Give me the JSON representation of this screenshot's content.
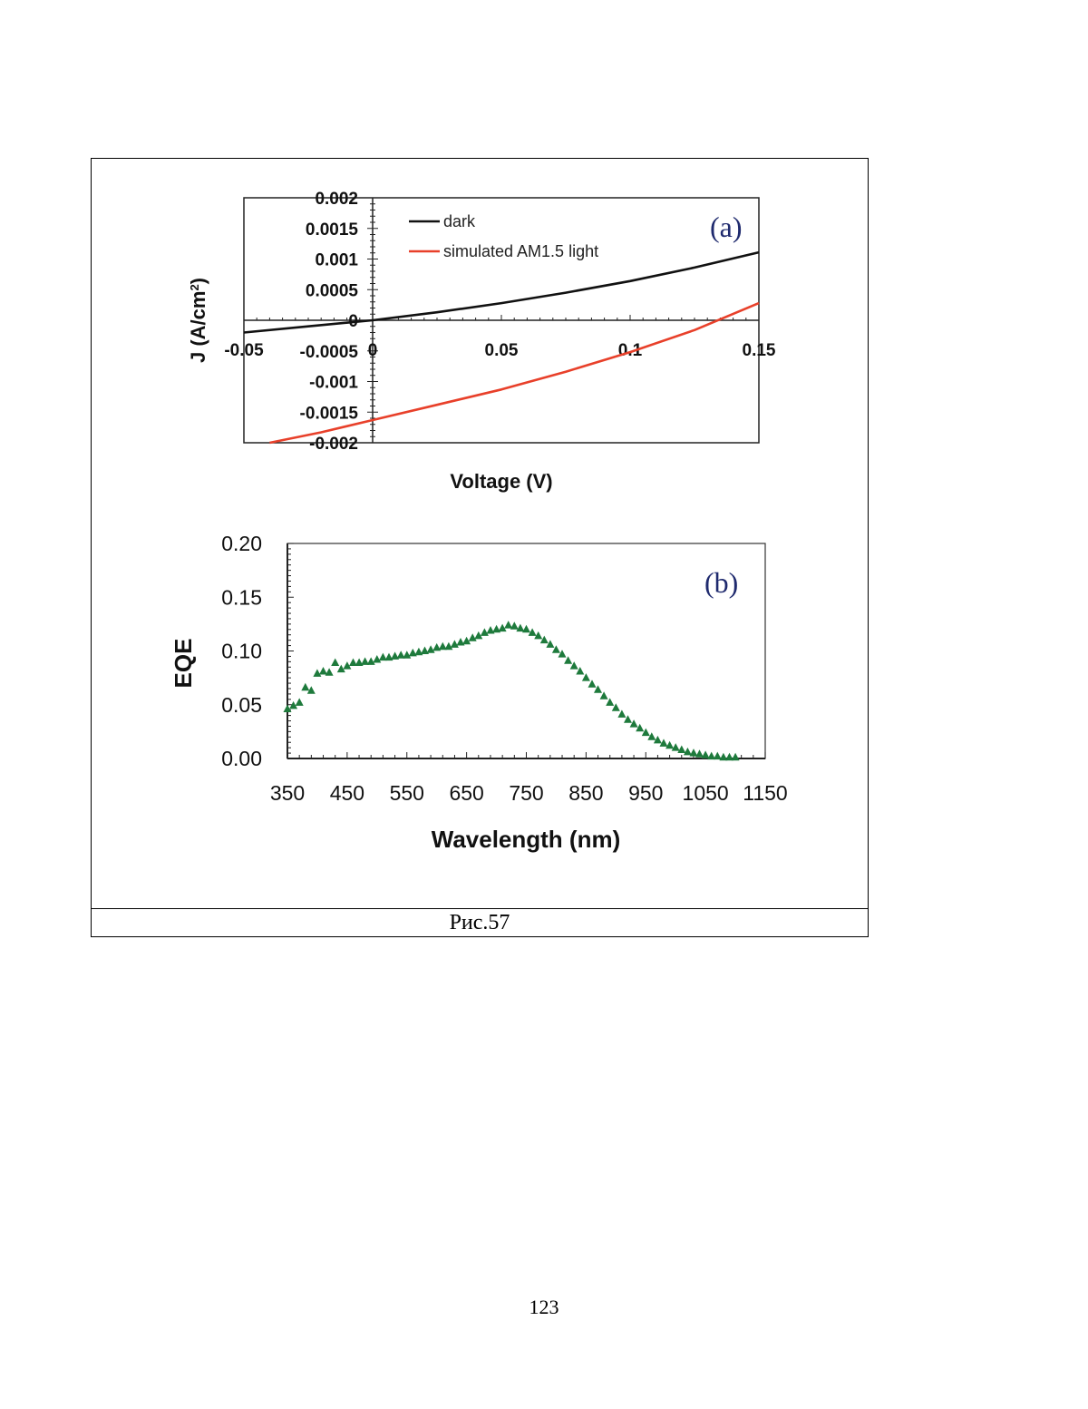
{
  "page_number": "123",
  "figure": {
    "caption": "Рис.57"
  },
  "chart_data": [
    {
      "type": "line",
      "panel_label": "(a)",
      "title": "",
      "xlabel": "Voltage (V)",
      "ylabel": "J (A/cm",
      "ylabel_sup": "2",
      "ylabel_close": ")",
      "xlim": [
        -0.05,
        0.15
      ],
      "ylim": [
        -0.002,
        0.002
      ],
      "x_ticks": [
        -0.05,
        0,
        0.05,
        0.1,
        0.15
      ],
      "x_tick_labels": [
        "-0.05",
        "0",
        "0.05",
        "0.1",
        "0.15"
      ],
      "y_ticks": [
        0.002,
        0.0015,
        0.001,
        0.0005,
        0,
        -0.0005,
        -0.001,
        -0.0015,
        -0.002
      ],
      "y_tick_labels": [
        "0.002",
        "0.0015",
        "0.001",
        "0.0005",
        "0",
        "-0.0005",
        "-0.001",
        "-0.0015",
        "-0.002"
      ],
      "grid": false,
      "legend_position": "top-left",
      "series": [
        {
          "name": "dark",
          "color": "#111111",
          "x": [
            -0.05,
            -0.025,
            0,
            0.025,
            0.05,
            0.075,
            0.1,
            0.125,
            0.15
          ],
          "y": [
            -0.0002,
            -0.0001,
            0.0,
            0.00013,
            0.00028,
            0.00045,
            0.00064,
            0.00086,
            0.00111
          ]
        },
        {
          "name": "simulated AM1.5 light",
          "color": "#e8402a",
          "x": [
            -0.04,
            -0.02,
            0,
            0.025,
            0.05,
            0.075,
            0.1,
            0.125,
            0.15
          ],
          "y": [
            -0.002,
            -0.00183,
            -0.00163,
            -0.00138,
            -0.00113,
            -0.00084,
            -0.00052,
            -0.00016,
            0.00028
          ]
        }
      ]
    },
    {
      "type": "scatter",
      "panel_label": "(b)",
      "title": "",
      "xlabel": "Wavelength (nm)",
      "ylabel": "EQE",
      "xlim": [
        350,
        1150
      ],
      "ylim": [
        0,
        0.2
      ],
      "x_ticks": [
        350,
        450,
        550,
        650,
        750,
        850,
        950,
        1050,
        1150
      ],
      "x_tick_labels": [
        "350",
        "450",
        "550",
        "650",
        "750",
        "850",
        "950",
        "1050",
        "1150"
      ],
      "y_ticks": [
        0,
        0.05,
        0.1,
        0.15,
        0.2
      ],
      "y_tick_labels": [
        "0.00",
        "0.05",
        "0.10",
        "0.15",
        "0.20"
      ],
      "grid": false,
      "marker": "triangle",
      "color": "#1e7a3c",
      "x": [
        350,
        360,
        370,
        380,
        390,
        400,
        410,
        420,
        430,
        440,
        450,
        460,
        470,
        480,
        490,
        500,
        510,
        520,
        530,
        540,
        550,
        560,
        570,
        580,
        590,
        600,
        610,
        620,
        630,
        640,
        650,
        660,
        670,
        680,
        690,
        700,
        710,
        720,
        730,
        740,
        750,
        760,
        770,
        780,
        790,
        800,
        810,
        820,
        830,
        840,
        850,
        860,
        870,
        880,
        890,
        900,
        910,
        920,
        930,
        940,
        950,
        960,
        970,
        980,
        990,
        1000,
        1010,
        1020,
        1030,
        1040,
        1050,
        1060,
        1070,
        1080,
        1090,
        1100
      ],
      "y": [
        0.046,
        0.049,
        0.052,
        0.066,
        0.063,
        0.079,
        0.081,
        0.08,
        0.089,
        0.083,
        0.086,
        0.089,
        0.089,
        0.09,
        0.09,
        0.092,
        0.094,
        0.094,
        0.095,
        0.096,
        0.096,
        0.098,
        0.099,
        0.1,
        0.101,
        0.103,
        0.104,
        0.104,
        0.106,
        0.108,
        0.109,
        0.112,
        0.114,
        0.117,
        0.119,
        0.12,
        0.121,
        0.124,
        0.123,
        0.121,
        0.12,
        0.117,
        0.114,
        0.11,
        0.106,
        0.101,
        0.097,
        0.091,
        0.086,
        0.081,
        0.075,
        0.069,
        0.064,
        0.058,
        0.052,
        0.047,
        0.041,
        0.036,
        0.032,
        0.028,
        0.024,
        0.02,
        0.017,
        0.014,
        0.012,
        0.01,
        0.008,
        0.006,
        0.005,
        0.004,
        0.003,
        0.002,
        0.002,
        0.001,
        0.001,
        0.001
      ]
    }
  ]
}
